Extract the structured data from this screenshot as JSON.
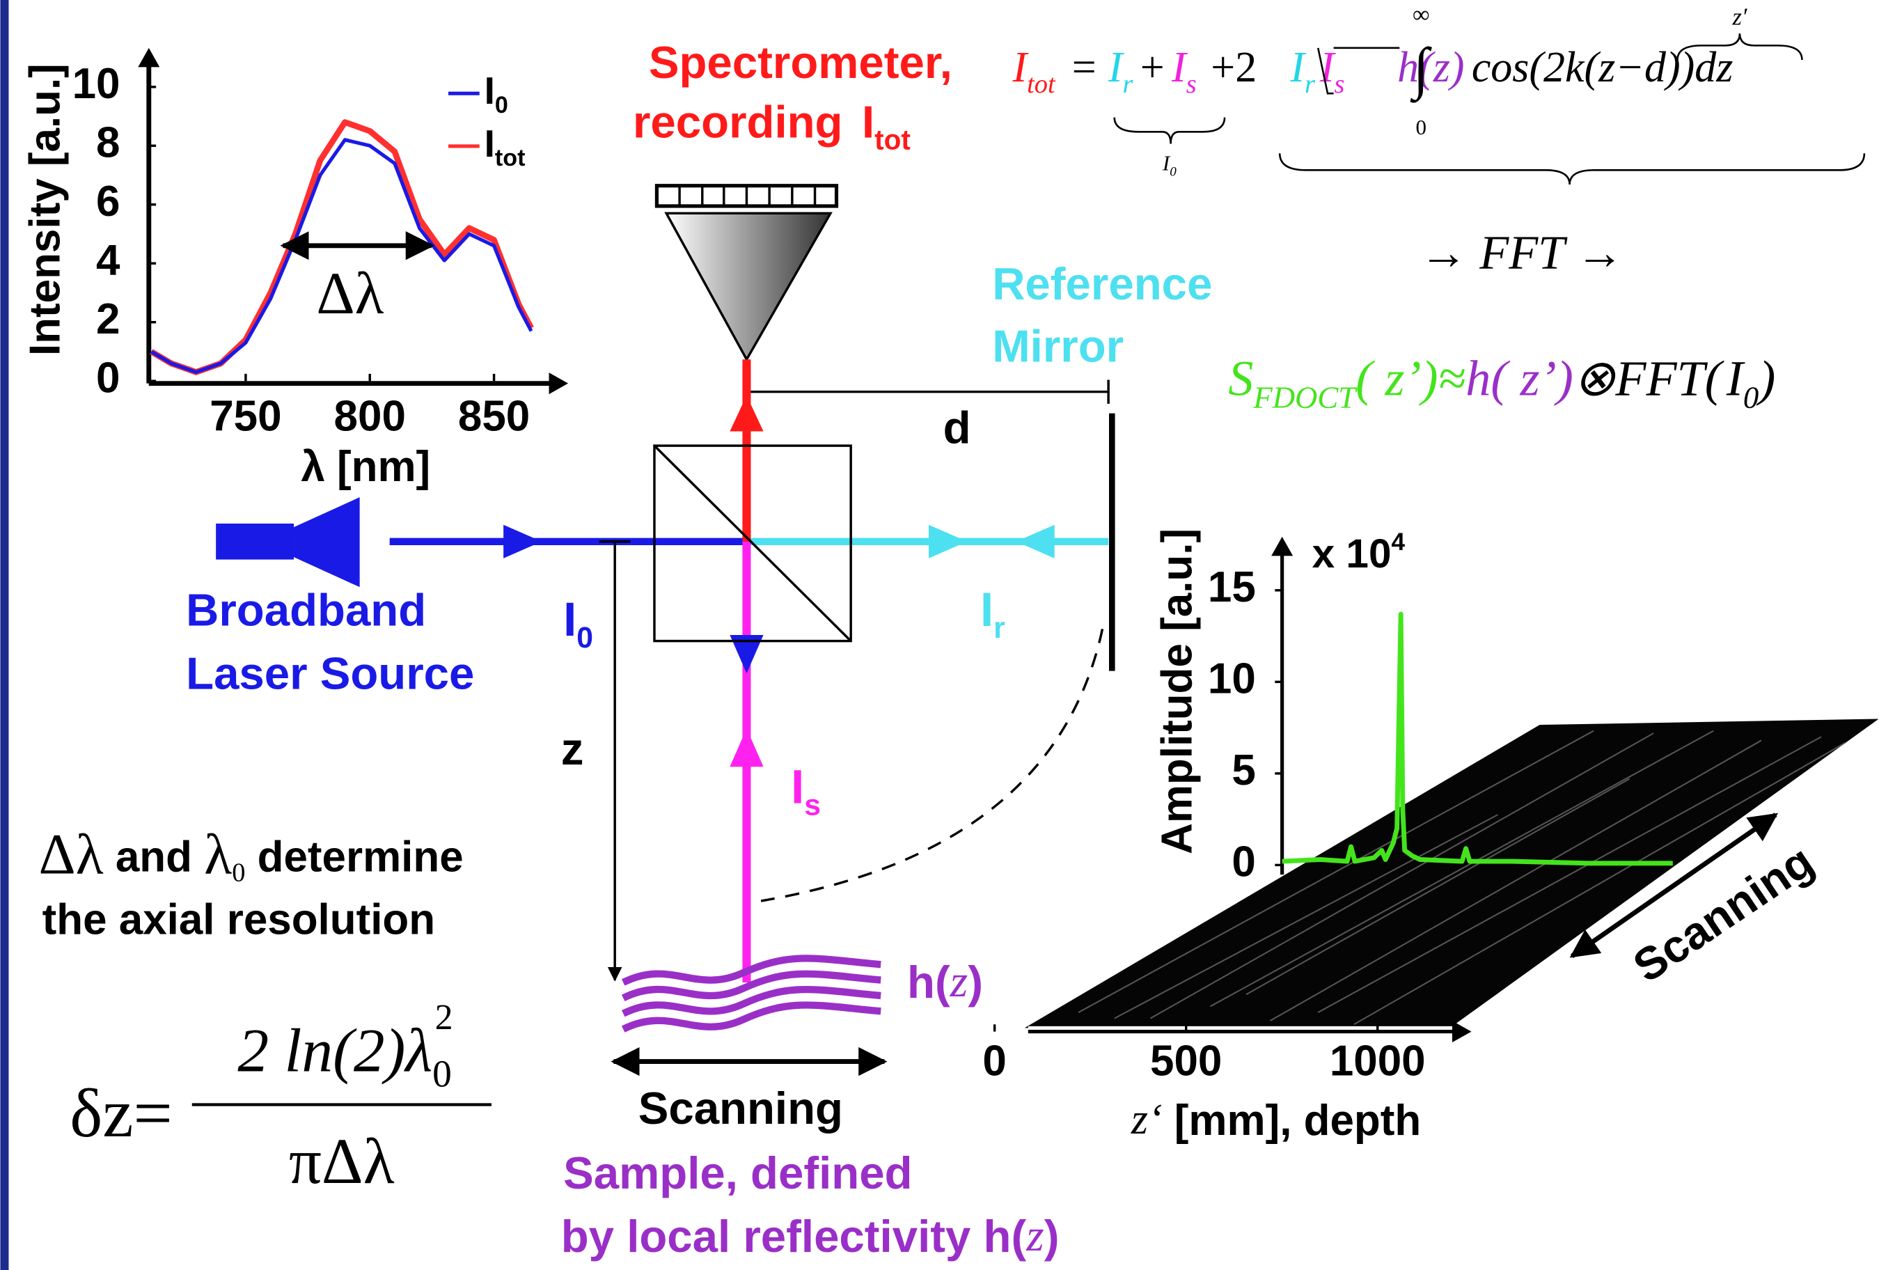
{
  "spectrometer_label": {
    "line1": "Spectrometer,",
    "line2": "recording",
    "symbol": "I",
    "subscript": "tot"
  },
  "formula_itot": {
    "lhs": "I",
    "lhs_sub": "tot",
    "eq": "=",
    "ir": "I",
    "ir_sub": "r",
    "plus1": "+",
    "is": "I",
    "is_sub": "s",
    "plus2": "+2",
    "sqrt_ir": "I",
    "sqrt_ir_sub": "r",
    "sqrt_is": "I",
    "sqrt_is_sub": "s",
    "int_upper": "∞",
    "int_lower": "0",
    "h": "h(z)",
    "cos": "cos(2k",
    "zd": "(z−d)",
    "close": ")dz",
    "underbrace_label": "I",
    "underbrace_sub": "0",
    "overbrace_label": "z′"
  },
  "fft_label": "→ FFT →",
  "formula_s": {
    "s": "S",
    "s_sub": "FDOCT",
    "arg": "( z’)≈",
    "h": "h( z’)",
    "conv": "⊗FFT(",
    "i": "I",
    "i_sub": "0",
    "close": ")"
  },
  "reference_mirror": {
    "line1": "Reference",
    "line2": "Mirror"
  },
  "d_label": "d",
  "source_label": {
    "line1": "Broadband",
    "line2": "Laser Source"
  },
  "i0_label": {
    "symbol": "I",
    "sub": "0"
  },
  "ir_label": {
    "symbol": "I",
    "sub": "r"
  },
  "is_label": {
    "symbol": "I",
    "sub": "s"
  },
  "z_label": "z",
  "h_label": {
    "text": "h(",
    "var": "z",
    "close": ")"
  },
  "scanning_sample": "Scanning",
  "sample_label": {
    "line1": "Sample, defined",
    "line2": "by local reflectivity h(",
    "var": "z",
    "close": ")"
  },
  "resolution_note": {
    "dl": "Δλ",
    "and": " and ",
    "l0": "λ",
    "l0_sub": "0",
    "rest": " determine",
    "line2": "the axial resolution"
  },
  "resolution_formula": {
    "lhs": "δz=",
    "num": "2 ln(2)λ",
    "num_sub": "0",
    "num_sup": "2",
    "den": "πΔλ"
  },
  "spectrum_plot": {
    "type": "line",
    "y_label": "Intensity [a.u.]",
    "x_label": "λ [nm]",
    "annotation": "Δλ",
    "x": [
      712,
      720,
      730,
      740,
      750,
      760,
      770,
      780,
      790,
      800,
      810,
      820,
      830,
      840,
      850,
      860,
      865
    ],
    "series": [
      {
        "name": "I",
        "name_sub": "0",
        "color": "#1a1ae6",
        "values": [
          1.0,
          0.6,
          0.3,
          0.6,
          1.3,
          2.8,
          4.8,
          7.0,
          8.2,
          8.0,
          7.4,
          5.2,
          4.1,
          5.0,
          4.6,
          2.5,
          1.7
        ]
      },
      {
        "name": "I",
        "name_sub": "tot",
        "color": "#ff3030",
        "values": [
          1.0,
          0.6,
          0.3,
          0.6,
          1.4,
          3.0,
          5.0,
          7.5,
          8.8,
          8.5,
          7.8,
          5.5,
          4.3,
          5.2,
          4.8,
          2.6,
          1.8
        ]
      }
    ],
    "xlim": [
      711,
      876
    ],
    "ylim": [
      0,
      11
    ],
    "xticks": [
      750,
      800,
      850
    ],
    "yticks": [
      0,
      2,
      4,
      6,
      8,
      10
    ]
  },
  "amplitude_plot": {
    "type": "line",
    "y_label": "Amplitude [a.u.]",
    "y_multiplier": {
      "text": "x 10",
      "sup": "4"
    },
    "x_label": {
      "var": "z‘",
      "rest": " [mm], depth"
    },
    "x": [
      0,
      100,
      170,
      180,
      190,
      240,
      260,
      270,
      290,
      300,
      305,
      310,
      315,
      320,
      340,
      360,
      470,
      480,
      490,
      600,
      800,
      1020
    ],
    "values": [
      0.2,
      0.3,
      0.2,
      1.0,
      0.2,
      0.4,
      0.8,
      0.3,
      1.2,
      2.0,
      8,
      13.7,
      3,
      0.8,
      0.5,
      0.3,
      0.2,
      0.9,
      0.2,
      0.2,
      0.1,
      0.1
    ],
    "color": "#44e41c",
    "xlim": [
      0,
      1220
    ],
    "ylim": [
      0,
      17.4
    ],
    "xticks": [
      0,
      500,
      1000
    ],
    "yticks": [
      0,
      5,
      10,
      15
    ]
  },
  "scanning_plane": "Scanning"
}
